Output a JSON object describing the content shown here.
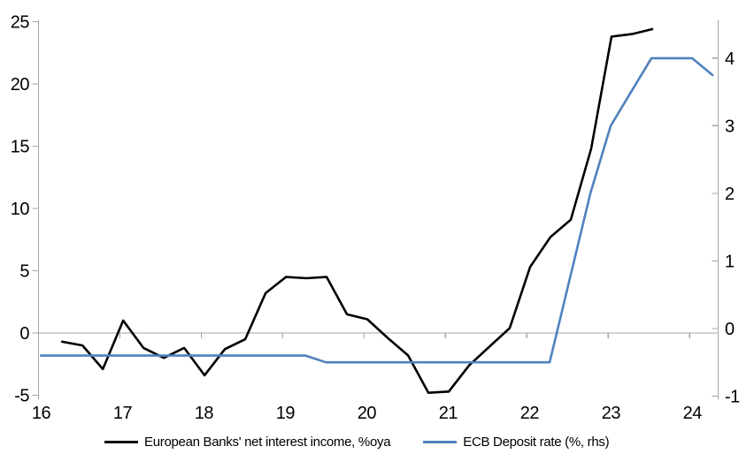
{
  "chart_data": {
    "type": "line",
    "title": "",
    "x_axis": {
      "tick_values": [
        2016,
        2017,
        2018,
        2019,
        2020,
        2021,
        2022,
        2023,
        2024
      ],
      "tick_labels": [
        "16",
        "17",
        "18",
        "19",
        "20",
        "21",
        "22",
        "23",
        "24"
      ],
      "xlim": [
        2016,
        2024.35
      ],
      "unit": "year"
    },
    "left_axis": {
      "tick_values": [
        -5,
        0,
        5,
        10,
        15,
        20,
        25
      ],
      "tick_labels": [
        "-5",
        "0",
        "5",
        "10",
        "15",
        "20",
        "25"
      ],
      "ylim": [
        -5,
        25
      ]
    },
    "right_axis": {
      "tick_values": [
        -1,
        0,
        1,
        2,
        3,
        4
      ],
      "tick_labels": [
        "-1",
        "0",
        "1",
        "2",
        "3",
        "4"
      ],
      "ylim": [
        -1,
        4.56
      ]
    },
    "gridlines": {
      "horizontal_zero_line_only": true
    },
    "legend_position": "bottom",
    "series": [
      {
        "name": "European Banks' net interest income, %oya",
        "axis": "left",
        "color": "#000000",
        "start_period": "2016Q2",
        "frequency": "quarterly",
        "x": [
          2016.29,
          2016.54,
          2016.79,
          2017.04,
          2017.29,
          2017.54,
          2017.79,
          2018.04,
          2018.29,
          2018.54,
          2018.79,
          2019.04,
          2019.29,
          2019.54,
          2019.79,
          2020.04,
          2020.29,
          2020.54,
          2020.79,
          2021.04,
          2021.29,
          2021.54,
          2021.79,
          2022.04,
          2022.29,
          2022.54,
          2022.79,
          2023.04,
          2023.29,
          2023.54
        ],
        "values": [
          -0.7,
          -1.0,
          -2.9,
          1.0,
          -1.2,
          -2.0,
          -1.2,
          -3.4,
          -1.3,
          -0.5,
          3.2,
          4.5,
          4.4,
          4.5,
          1.5,
          1.1,
          -0.4,
          -1.8,
          -4.8,
          -4.7,
          -2.6,
          -1.1,
          0.4,
          5.3,
          7.7,
          9.1,
          14.8,
          23.8,
          24.0,
          24.4
        ]
      },
      {
        "name": "ECB Deposit rate (%, rhs)",
        "axis": "right",
        "color": "#4f81bd",
        "start_period": "2016Q1",
        "frequency": "quarterly",
        "x": [
          2016.03,
          2016.28,
          2016.53,
          2016.78,
          2017.03,
          2017.28,
          2017.53,
          2017.78,
          2018.03,
          2018.28,
          2018.53,
          2018.78,
          2019.03,
          2019.28,
          2019.53,
          2019.78,
          2020.03,
          2020.28,
          2020.53,
          2020.78,
          2021.03,
          2021.28,
          2021.53,
          2021.78,
          2022.03,
          2022.28,
          2022.53,
          2022.78,
          2023.03,
          2023.28,
          2023.53,
          2023.78,
          2024.03,
          2024.28
        ],
        "values": [
          -0.4,
          -0.4,
          -0.4,
          -0.4,
          -0.4,
          -0.4,
          -0.4,
          -0.4,
          -0.4,
          -0.4,
          -0.4,
          -0.4,
          -0.4,
          -0.4,
          -0.5,
          -0.5,
          -0.5,
          -0.5,
          -0.5,
          -0.5,
          -0.5,
          -0.5,
          -0.5,
          -0.5,
          -0.5,
          -0.5,
          0.75,
          2.0,
          3.0,
          3.5,
          4.0,
          4.0,
          4.0,
          3.75
        ]
      }
    ]
  },
  "legend": {
    "items": [
      {
        "label": "European Banks' net interest income, %oya"
      },
      {
        "label": "ECB Deposit rate (%, rhs)"
      }
    ]
  },
  "colors": {
    "background": "#ffffff",
    "axis": "#a6a6a6",
    "zero_line": "#a6a6a6",
    "text": "#000000",
    "nii_line": "#000000",
    "ecb_line": "#4f81bd"
  }
}
